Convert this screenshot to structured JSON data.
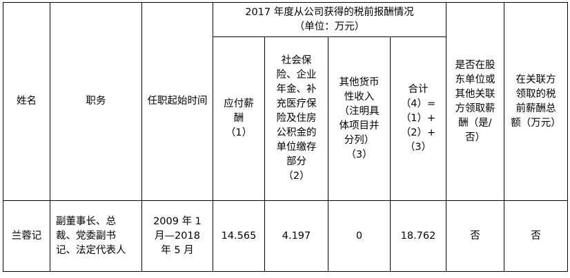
{
  "headers": {
    "name": "姓名",
    "position": "职务",
    "term": "任职起始时间",
    "group_title": "2017 年度从公司获得的税前报酬情况\n（单位：万元）",
    "salary": "应付薪\n酬\n（1）",
    "insurance": "社会保\n险、企业\n年金、补\n充医疗保\n险及住房\n公积金的\n单位缴存\n部分\n（2）",
    "other_income": "其他货币\n性收入\n（注明具\n体项目并\n分列）\n（3）",
    "total": "合计\n（4）=\n（1）+\n（2）+\n（3）",
    "shareholder_paid": "是否在股\n东单位或\n其他关联\n方领取薪\n酬（是/\n否）",
    "related_total": "在关联方\n领取的税\n前薪酬总\n额（万元）"
  },
  "rows": [
    {
      "name": "兰蓉记",
      "position": "副董事长、总\n裁、党委副书\n记、法定代表人",
      "term": "2009 年 1\n月—2018\n年 5 月",
      "salary": "14.565",
      "insurance": "4.197",
      "other_income": "0",
      "total": "18.762",
      "shareholder_paid": "否",
      "related_total": "否"
    }
  ]
}
